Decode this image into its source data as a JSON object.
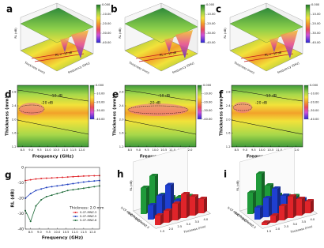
{
  "chart_data": [
    {
      "type": "surface3d",
      "label": "a",
      "zlabel": "RL (dB)",
      "xlabel": "Frequency (GHz)",
      "ylabel": "Thickness (mm)",
      "annotation": "RL = -10 dB",
      "clim": [
        -40,
        0
      ],
      "colorbar_ticks": [
        {
          "value": 0,
          "label": "0.000"
        },
        {
          "value": -10,
          "label": "-10.00"
        },
        {
          "value": -20,
          "label": "-20.00"
        },
        {
          "value": -30,
          "label": "-30.00"
        },
        {
          "value": -40,
          "label": "-40.00"
        }
      ]
    },
    {
      "type": "surface3d",
      "label": "b",
      "zlabel": "RL (dB)",
      "xlabel": "Frequency (GHz)",
      "ylabel": "Thickness (mm)",
      "annotation": "RL = -10 dB",
      "clim": [
        -40,
        0
      ],
      "colorbar_ticks": [
        {
          "value": 0,
          "label": "0.000"
        },
        {
          "value": -10,
          "label": "-10.00"
        },
        {
          "value": -20,
          "label": "-20.00"
        },
        {
          "value": -30,
          "label": "-30.00"
        },
        {
          "value": -40,
          "label": "-40.00"
        }
      ]
    },
    {
      "type": "surface3d",
      "label": "c",
      "zlabel": "RL (dB)",
      "xlabel": "Frequency (GHz)",
      "ylabel": "Thickness (mm)",
      "annotation": "RL = -10 dB",
      "clim": [
        -40,
        0
      ],
      "colorbar_ticks": [
        {
          "value": 0,
          "label": "0.000"
        },
        {
          "value": -10,
          "label": "-10.00"
        },
        {
          "value": -20,
          "label": "-20.00"
        },
        {
          "value": -30,
          "label": "-30.00"
        },
        {
          "value": -40,
          "label": "-40.00"
        }
      ]
    },
    {
      "type": "contour",
      "label": "d",
      "xlabel": "Frequency (GHz)",
      "ylabel": "Thickness (mm)",
      "contour_labels": [
        "-10 dB",
        "-20 dB"
      ],
      "xlim": [
        8.2,
        12.4
      ],
      "xticks": [
        8.5,
        {
          "value": 9,
          "label": "9.0"
        },
        9.5,
        {
          "value": 10,
          "label": "10.0"
        },
        10.5,
        {
          "value": 11,
          "label": "11.0"
        },
        11.5,
        {
          "value": 12,
          "label": "12.0"
        }
      ],
      "ylim": [
        1.2,
        3.0
      ],
      "yticks": [
        1.2,
        1.6,
        {
          "value": 2,
          "label": "2.0"
        },
        2.4,
        2.8
      ],
      "clim": [
        -40,
        0
      ],
      "colorbar_ticks": [
        {
          "value": 0,
          "label": "0.000"
        },
        {
          "value": -10,
          "label": "-10.00"
        },
        {
          "value": -20,
          "label": "-20.00"
        },
        {
          "value": -30,
          "label": "-30.00"
        },
        {
          "value": -40,
          "label": "-40.00"
        }
      ]
    },
    {
      "type": "contour",
      "label": "e",
      "xlabel": "Frequency (GHz)",
      "ylabel": "Thickness (mm)",
      "contour_labels": [
        "-10 dB",
        "-20 dB"
      ],
      "xlim": [
        8.2,
        12.4
      ],
      "xticks": [
        8.5,
        {
          "value": 9,
          "label": "9.0"
        },
        9.5,
        {
          "value": 10,
          "label": "10.0"
        },
        10.5,
        {
          "value": 11,
          "label": "11.0"
        },
        11.5,
        {
          "value": 12,
          "label": "12.0"
        }
      ],
      "ylim": [
        1.2,
        3.0
      ],
      "yticks": [
        1.2,
        1.6,
        {
          "value": 2,
          "label": "2.0"
        },
        2.4,
        2.8
      ],
      "clim": [
        -40,
        0
      ],
      "colorbar_ticks": [
        {
          "value": 0,
          "label": "0.000"
        },
        {
          "value": -10,
          "label": "-10.00"
        },
        {
          "value": -20,
          "label": "-20.00"
        },
        {
          "value": -30,
          "label": "-30.00"
        },
        {
          "value": -40,
          "label": "-40.00"
        }
      ]
    },
    {
      "type": "contour",
      "label": "f",
      "xlabel": "Frequency (GHz)",
      "ylabel": "Thickness (mm)",
      "contour_labels": [
        "-10 dB",
        "-20 dB"
      ],
      "xlim": [
        8.2,
        12.4
      ],
      "xticks": [
        8.5,
        {
          "value": 9,
          "label": "9.0"
        },
        9.5,
        {
          "value": 10,
          "label": "10.0"
        },
        10.5,
        {
          "value": 11,
          "label": "11.0"
        },
        11.5,
        {
          "value": 12,
          "label": "12.0"
        }
      ],
      "ylim": [
        1.2,
        3.0
      ],
      "yticks": [
        1.2,
        1.6,
        {
          "value": 2,
          "label": "2.0"
        },
        2.4,
        2.8
      ],
      "clim": [
        -40,
        0
      ],
      "colorbar_ticks": [
        {
          "value": 0,
          "label": "0.000"
        },
        {
          "value": -10,
          "label": "-10.00"
        },
        {
          "value": -20,
          "label": "-20.00"
        },
        {
          "value": -30,
          "label": "-30.00"
        },
        {
          "value": -40,
          "label": "-40.00"
        }
      ]
    },
    {
      "type": "line",
      "label": "g",
      "xlabel": "Frequency (GHz)",
      "ylabel": "RL (dB)",
      "annotation": "Thickness: 2.0 mm",
      "legend": "lower right",
      "xlim": [
        8.2,
        12.4
      ],
      "xticks": [
        8.5,
        {
          "value": 9,
          "label": "9.0"
        },
        9.5,
        {
          "value": 10,
          "label": "10.0"
        },
        10.5,
        {
          "value": 11,
          "label": "11.0"
        },
        11.5,
        {
          "value": 12,
          "label": "12.0"
        }
      ],
      "ylim": [
        -40,
        0
      ],
      "yticks": [
        0,
        -10,
        -20,
        -30,
        -40
      ],
      "x": [
        8.2,
        8.5,
        8.8,
        9.1,
        9.4,
        9.7,
        10.0,
        10.3,
        10.6,
        10.9,
        11.2,
        11.5,
        11.8,
        12.1,
        12.4
      ],
      "series": [
        {
          "name": "S-CF-MNZ-3",
          "color": "#e0242a",
          "values": [
            -8.5,
            -8,
            -7.5,
            -7.2,
            -7,
            -6.8,
            -6.6,
            -6.4,
            -6.2,
            -6,
            -5.8,
            -5.6,
            -5.5,
            -5.4,
            -5.3
          ]
        },
        {
          "name": "S-CF-MNZ-5",
          "color": "#1f3fbf",
          "values": [
            -20,
            -17,
            -15,
            -14,
            -13,
            -12.5,
            -12,
            -11.5,
            -11,
            -10.5,
            -10,
            -9.5,
            -9,
            -8.8,
            -8.5
          ]
        },
        {
          "name": "S-CF-MNZ-6",
          "color": "#1f6b3a",
          "values": [
            -28,
            -35,
            -25,
            -21,
            -19,
            -18,
            -17,
            -16,
            -15,
            -14.5,
            -14,
            -13.5,
            -13,
            -12.5,
            -12
          ]
        }
      ]
    },
    {
      "type": "bar3d",
      "label": "h",
      "zlabel": "RL (dB)",
      "xlabel": "Thickness (mm)",
      "zlim": [
        0,
        -40
      ],
      "categories": [
        "1.5",
        "2.0",
        "2.5",
        "3.0",
        "3.5",
        "4.0"
      ],
      "series": [
        {
          "name": "S-CF-MNZ-3",
          "color": "#e0242a",
          "values": [
            -8,
            -10,
            -14,
            -20,
            -16,
            -12
          ]
        },
        {
          "name": "S-CF-MNZ-5",
          "color": "#1f3fd0",
          "values": [
            -12,
            -18,
            -25,
            -10,
            -8,
            -6
          ]
        },
        {
          "name": "S-CF-MNZ-6",
          "color": "#1f9a3a",
          "values": [
            -22,
            -30,
            -12,
            -8,
            -6,
            -5
          ]
        }
      ]
    },
    {
      "type": "bar3d",
      "label": "i",
      "zlabel": "RL (dB)",
      "xlabel": "Thickness (mm)",
      "zlim": [
        0,
        -40
      ],
      "categories": [
        "1.5",
        "2.0",
        "2.5",
        "3.0",
        "3.5",
        "4.0"
      ],
      "series": [
        {
          "name": "S-CF-MNZ-3",
          "color": "#e0242a",
          "values": [
            -2,
            -6,
            -12,
            -18,
            -14,
            -10
          ]
        },
        {
          "name": "S-CF-MNZ-5",
          "color": "#1f3fd0",
          "values": [
            -10,
            -16,
            -22,
            -14,
            -9,
            -7
          ]
        },
        {
          "name": "S-CF-MNZ-6",
          "color": "#1f9a3a",
          "values": [
            -18,
            -32,
            -20,
            -10,
            -7,
            -5
          ]
        }
      ]
    }
  ]
}
